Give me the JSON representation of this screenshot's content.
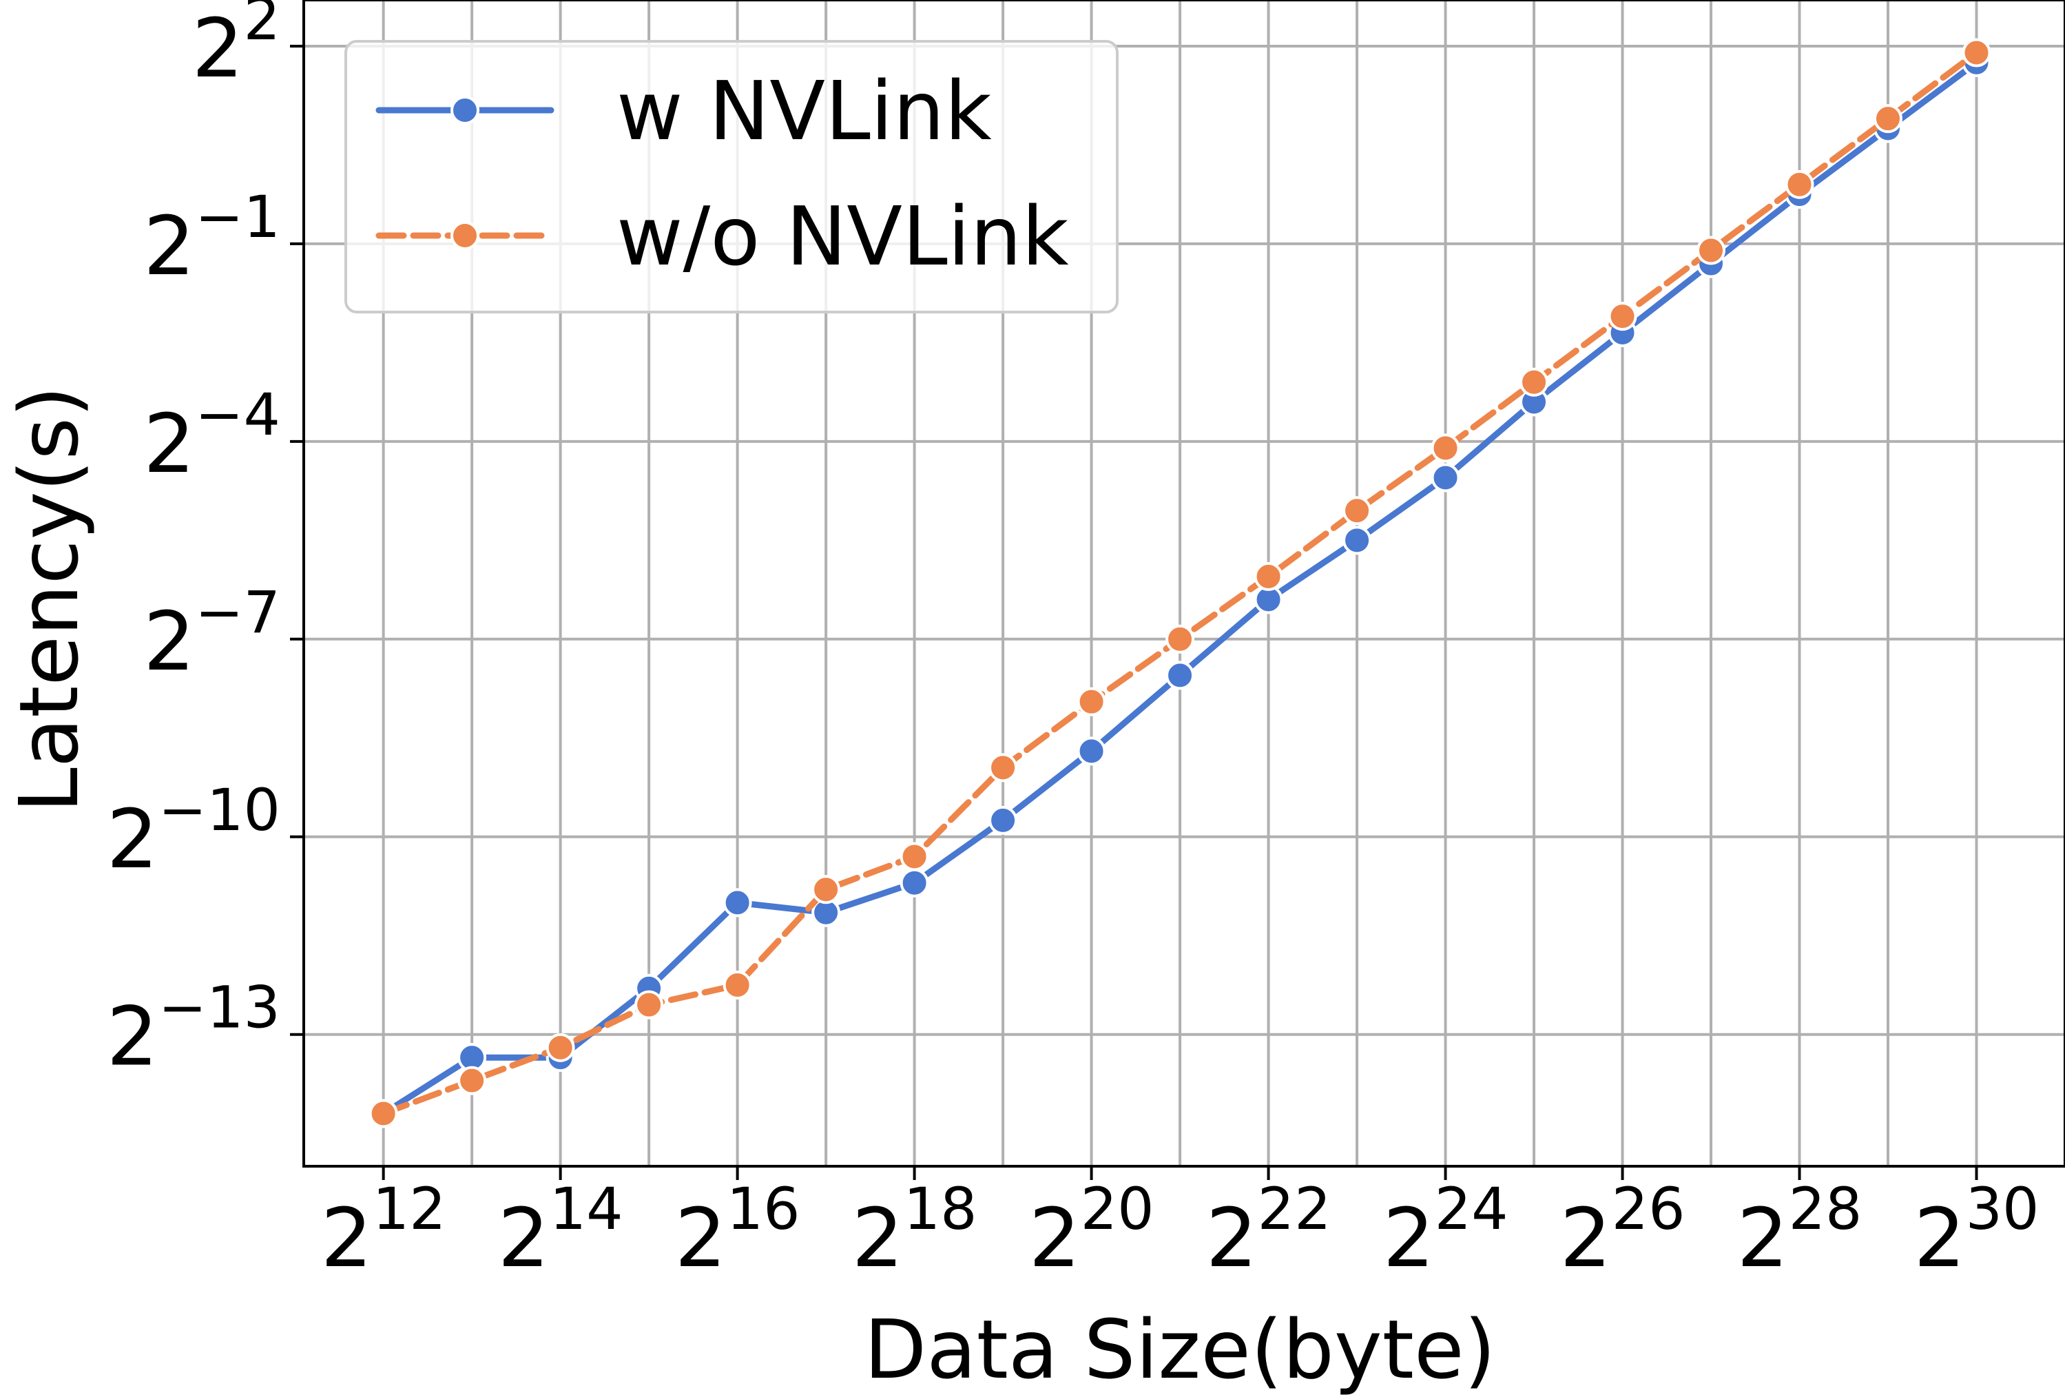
{
  "chart_data": {
    "type": "line",
    "xlabel": "Data Size(byte)",
    "ylabel": "Latency(s)",
    "x_scale": "log2",
    "y_scale": "log2",
    "x": [
      4096,
      8192,
      16384,
      32768,
      65536,
      131072,
      262144,
      524288,
      1048576,
      2097152,
      4194304,
      8388608,
      16777216,
      33554432,
      67108864,
      134217728,
      268435456,
      536870912,
      1073741824
    ],
    "x_exponents": [
      12,
      13,
      14,
      15,
      16,
      17,
      18,
      19,
      20,
      21,
      22,
      23,
      24,
      25,
      26,
      27,
      28,
      29,
      30
    ],
    "xlim_exponent": [
      11.1,
      31
    ],
    "ylim_exponent": [
      -15,
      2.7
    ],
    "x_ticks": [
      {
        "base": "2",
        "exp": "12",
        "value": 12
      },
      {
        "base": "2",
        "exp": "14",
        "value": 14
      },
      {
        "base": "2",
        "exp": "16",
        "value": 16
      },
      {
        "base": "2",
        "exp": "18",
        "value": 18
      },
      {
        "base": "2",
        "exp": "20",
        "value": 20
      },
      {
        "base": "2",
        "exp": "22",
        "value": 22
      },
      {
        "base": "2",
        "exp": "24",
        "value": 24
      },
      {
        "base": "2",
        "exp": "26",
        "value": 26
      },
      {
        "base": "2",
        "exp": "28",
        "value": 28
      },
      {
        "base": "2",
        "exp": "30",
        "value": 30
      }
    ],
    "y_ticks": [
      {
        "base": "2",
        "exp": "−13",
        "value": -13
      },
      {
        "base": "2",
        "exp": "−10",
        "value": -10
      },
      {
        "base": "2",
        "exp": "−7",
        "value": -7
      },
      {
        "base": "2",
        "exp": "−4",
        "value": -4
      },
      {
        "base": "2",
        "exp": "−1",
        "value": -1
      },
      {
        "base": "2",
        "exp": "2",
        "value": 2
      }
    ],
    "grid": true,
    "legend_position": "top-left",
    "series": [
      {
        "name": "w NVLink",
        "color": "#4878d0",
        "line_style": "solid",
        "marker": "circle",
        "y_exponents": [
          -14.2,
          -13.35,
          -13.35,
          -12.3,
          -11.0,
          -11.15,
          -10.7,
          -9.75,
          -8.7,
          -7.55,
          -6.4,
          -5.5,
          -4.55,
          -3.4,
          -2.35,
          -1.3,
          -0.25,
          0.75,
          1.75
        ],
        "values": [
          5.31e-05,
          9.54e-05,
          9.54e-05,
          0.000198,
          0.000488,
          0.00044,
          0.000601,
          0.00116,
          0.0024,
          0.00533,
          0.0118,
          0.0221,
          0.0427,
          0.0947,
          0.196,
          0.406,
          0.841,
          1.68,
          3.36
        ]
      },
      {
        "name": "w/o NVLink",
        "color": "#ee854a",
        "line_style": "dashed",
        "marker": "circle",
        "y_exponents": [
          -14.2,
          -13.7,
          -13.2,
          -12.55,
          -12.25,
          -10.8,
          -10.3,
          -8.95,
          -7.95,
          -7.0,
          -6.05,
          -5.05,
          -4.1,
          -3.1,
          -2.1,
          -1.1,
          -0.1,
          0.9,
          1.9
        ],
        "values": [
          5.31e-05,
          7.52e-05,
          0.000106,
          0.000166,
          0.000205,
          0.000561,
          0.000793,
          0.00203,
          0.00406,
          0.00781,
          0.015,
          0.0302,
          0.0583,
          0.117,
          0.233,
          0.467,
          0.933,
          1.87,
          3.73
        ]
      }
    ]
  }
}
